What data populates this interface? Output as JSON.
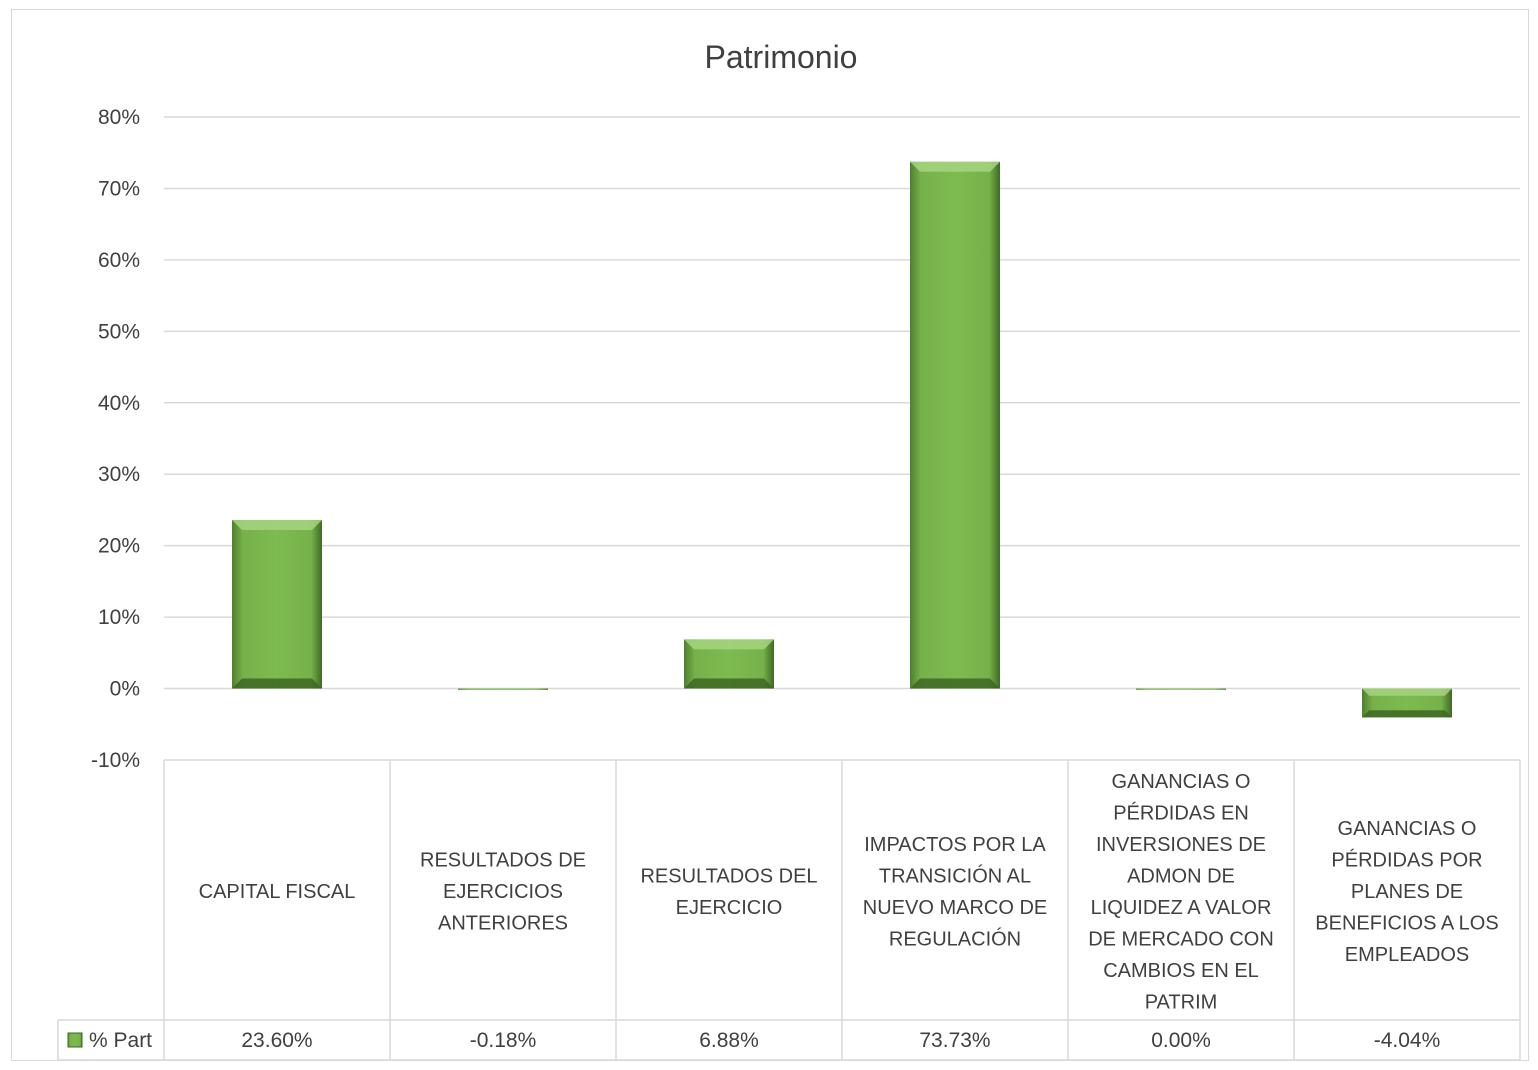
{
  "chart_data": {
    "type": "bar",
    "title": "Patrimonio",
    "categories": [
      "CAPITAL FISCAL",
      "RESULTADOS DE EJERCICIOS ANTERIORES",
      "RESULTADOS DEL EJERCICIO",
      "IMPACTOS POR LA TRANSICIÓN AL NUEVO MARCO DE REGULACIÓN",
      "GANANCIAS O PÉRDIDAS EN INVERSIONES DE ADMON DE LIQUIDEZ A VALOR DE MERCADO CON CAMBIOS EN EL PATRIM",
      "GANANCIAS O PÉRDIDAS POR PLANES DE BENEFICIOS A LOS EMPLEADOS"
    ],
    "category_lines": [
      [
        "CAPITAL FISCAL"
      ],
      [
        "RESULTADOS DE",
        "EJERCICIOS",
        "ANTERIORES"
      ],
      [
        "RESULTADOS DEL",
        "EJERCICIO"
      ],
      [
        "IMPACTOS POR LA",
        "TRANSICIÓN AL",
        "NUEVO MARCO DE",
        "REGULACIÓN"
      ],
      [
        "GANANCIAS O",
        "PÉRDIDAS EN",
        "INVERSIONES DE",
        "ADMON DE",
        "LIQUIDEZ A VALOR",
        "DE MERCADO CON",
        "CAMBIOS EN EL",
        "PATRIM"
      ],
      [
        "GANANCIAS O",
        "PÉRDIDAS POR",
        "PLANES DE",
        "BENEFICIOS A LOS",
        "EMPLEADOS"
      ]
    ],
    "series": [
      {
        "name": "% Part",
        "values": [
          23.6,
          -0.18,
          6.88,
          73.73,
          0.0,
          -4.04
        ],
        "labels": [
          "23.60%",
          "-0.18%",
          "6.88%",
          "73.73%",
          "0.00%",
          "-4.04%"
        ],
        "color": "#70ad47"
      }
    ],
    "ylim": [
      -10,
      80
    ],
    "yticks": [
      80,
      70,
      60,
      50,
      40,
      30,
      20,
      10,
      0,
      -10
    ],
    "ytick_labels": [
      "80%",
      "70%",
      "60%",
      "50%",
      "40%",
      "30%",
      "20%",
      "10%",
      "0%",
      "-10%"
    ],
    "grid": true,
    "legend": "data-table"
  }
}
